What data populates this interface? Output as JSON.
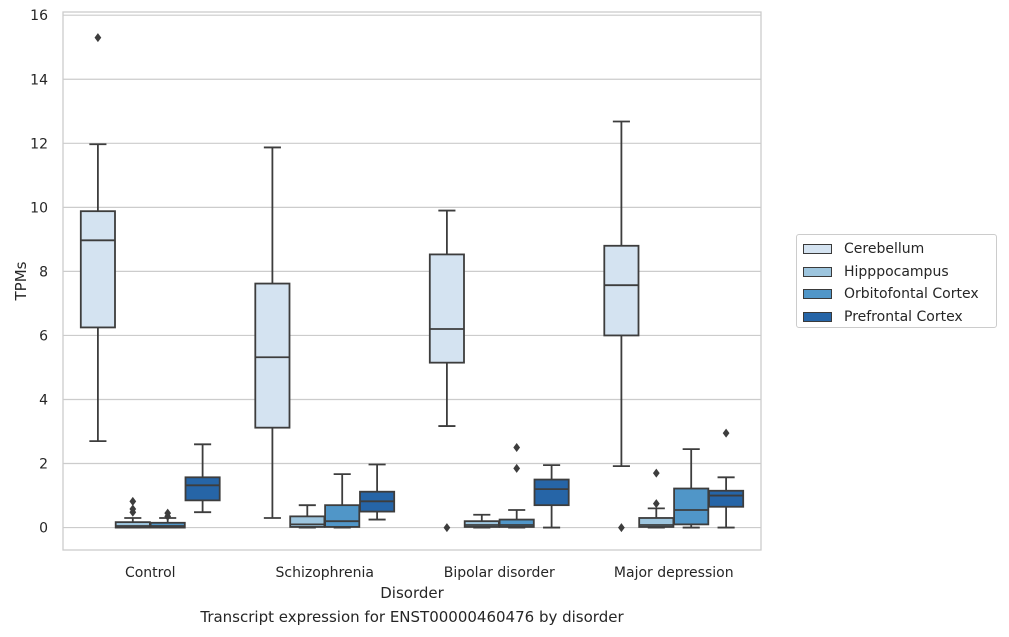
{
  "chart_data": {
    "type": "box",
    "title": "",
    "caption": "Transcript expression for ENST00000460476 by disorder",
    "xlabel": "Disorder",
    "ylabel": "TPMs",
    "ylim": [
      -0.7,
      16.1
    ],
    "yticks": [
      0,
      2,
      4,
      6,
      8,
      10,
      12,
      14,
      16
    ],
    "ytick_labels": [
      "0",
      "2",
      "4",
      "6",
      "8",
      "10",
      "12",
      "14",
      "16"
    ],
    "grid": true,
    "legend_position": "right",
    "categories": [
      "Control",
      "Schizophrenia",
      "Bipolar disorder",
      "Major depression"
    ],
    "series": [
      {
        "name": "Cerebellum",
        "color": "#d4e3f1",
        "boxes": [
          {
            "whislo": 2.7,
            "q1": 6.25,
            "med": 8.97,
            "q3": 9.88,
            "whishi": 11.97,
            "fliers": [
              15.3
            ]
          },
          {
            "whislo": 0.3,
            "q1": 3.12,
            "med": 5.32,
            "q3": 7.62,
            "whishi": 11.87,
            "fliers": []
          },
          {
            "whislo": 3.17,
            "q1": 5.15,
            "med": 6.2,
            "q3": 8.53,
            "whishi": 9.9,
            "fliers": [
              0.0
            ]
          },
          {
            "whislo": 1.92,
            "q1": 6.0,
            "med": 7.57,
            "q3": 8.8,
            "whishi": 12.68,
            "fliers": [
              0.0
            ]
          }
        ]
      },
      {
        "name": "Hipppocampus",
        "color": "#9dc5de",
        "boxes": [
          {
            "whislo": 0.0,
            "q1": 0.0,
            "med": 0.05,
            "q3": 0.17,
            "whishi": 0.3,
            "fliers": [
              0.48,
              0.58,
              0.82
            ]
          },
          {
            "whislo": 0.0,
            "q1": 0.02,
            "med": 0.1,
            "q3": 0.35,
            "whishi": 0.7,
            "fliers": []
          },
          {
            "whislo": 0.0,
            "q1": 0.02,
            "med": 0.08,
            "q3": 0.2,
            "whishi": 0.4,
            "fliers": []
          },
          {
            "whislo": 0.0,
            "q1": 0.02,
            "med": 0.08,
            "q3": 0.3,
            "whishi": 0.6,
            "fliers": [
              0.75,
              1.7
            ]
          }
        ]
      },
      {
        "name": "Orbitofontal Cortex",
        "color": "#5096c8",
        "boxes": [
          {
            "whislo": 0.0,
            "q1": 0.0,
            "med": 0.05,
            "q3": 0.15,
            "whishi": 0.3,
            "fliers": [
              0.35,
              0.45
            ]
          },
          {
            "whislo": 0.0,
            "q1": 0.02,
            "med": 0.2,
            "q3": 0.7,
            "whishi": 1.67,
            "fliers": []
          },
          {
            "whislo": 0.0,
            "q1": 0.02,
            "med": 0.08,
            "q3": 0.25,
            "whishi": 0.55,
            "fliers": [
              1.85,
              2.5
            ]
          },
          {
            "whislo": 0.0,
            "q1": 0.1,
            "med": 0.55,
            "q3": 1.22,
            "whishi": 2.45,
            "fliers": []
          }
        ]
      },
      {
        "name": "Prefrontal Cortex",
        "color": "#2665a7",
        "boxes": [
          {
            "whislo": 0.48,
            "q1": 0.85,
            "med": 1.32,
            "q3": 1.57,
            "whishi": 2.6,
            "fliers": []
          },
          {
            "whislo": 0.25,
            "q1": 0.5,
            "med": 0.82,
            "q3": 1.12,
            "whishi": 1.97,
            "fliers": []
          },
          {
            "whislo": 0.0,
            "q1": 0.7,
            "med": 1.2,
            "q3": 1.5,
            "whishi": 1.95,
            "fliers": []
          },
          {
            "whislo": 0.0,
            "q1": 0.65,
            "med": 1.0,
            "q3": 1.15,
            "whishi": 1.57,
            "fliers": [
              2.95
            ]
          }
        ]
      }
    ]
  }
}
